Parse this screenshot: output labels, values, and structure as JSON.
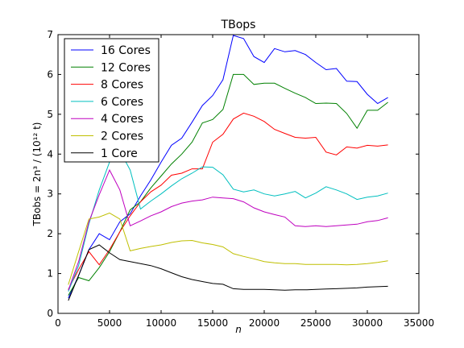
{
  "chart_data": {
    "type": "line",
    "title": "TBops",
    "xlabel": "n",
    "ylabel": "TBobs = 2n³ / (10¹² t)",
    "xlim": [
      0,
      35000
    ],
    "ylim": [
      0,
      7
    ],
    "xticks": [
      0,
      5000,
      10000,
      15000,
      20000,
      25000,
      30000,
      35000
    ],
    "xtick_labels": [
      "0",
      "5000",
      "10000",
      "15000",
      "20000",
      "25000",
      "30000",
      "35000"
    ],
    "yticks": [
      0,
      1,
      2,
      3,
      4,
      5,
      6,
      7
    ],
    "ytick_labels": [
      "0",
      "1",
      "2",
      "3",
      "4",
      "5",
      "6",
      "7"
    ],
    "grid": false,
    "legend_position": "top-left",
    "series": [
      {
        "name": "16 Cores",
        "color": "#0000ff",
        "x": [
          1000,
          2000,
          3000,
          4000,
          5000,
          6000,
          7000,
          8000,
          9000,
          10000,
          11000,
          12000,
          13000,
          14000,
          15000,
          16000,
          17000,
          18000,
          19000,
          20000,
          21000,
          22000,
          23000,
          24000,
          25000,
          26000,
          27000,
          28000,
          29000,
          30000,
          31000,
          32000
        ],
        "y": [
          0.38,
          0.95,
          1.6,
          2.0,
          1.85,
          2.3,
          2.5,
          2.95,
          3.35,
          3.8,
          4.22,
          4.4,
          4.8,
          5.22,
          5.47,
          5.87,
          6.98,
          6.9,
          6.45,
          6.3,
          6.65,
          6.57,
          6.6,
          6.5,
          6.3,
          6.12,
          6.15,
          5.83,
          5.82,
          5.5,
          5.27,
          5.42
        ]
      },
      {
        "name": "12 Cores",
        "color": "#008000",
        "x": [
          1000,
          2000,
          3000,
          4000,
          5000,
          6000,
          7000,
          8000,
          9000,
          10000,
          11000,
          12000,
          13000,
          14000,
          15000,
          16000,
          17000,
          18000,
          19000,
          20000,
          21000,
          22000,
          23000,
          24000,
          25000,
          26000,
          27000,
          28000,
          29000,
          30000,
          31000,
          32000
        ],
        "y": [
          0.45,
          0.9,
          0.82,
          1.15,
          1.55,
          2.05,
          2.6,
          2.8,
          3.15,
          3.45,
          3.75,
          4.0,
          4.3,
          4.78,
          4.87,
          5.12,
          6.0,
          6.0,
          5.75,
          5.78,
          5.78,
          5.65,
          5.53,
          5.42,
          5.27,
          5.28,
          5.27,
          5.02,
          4.65,
          5.1,
          5.1,
          5.3
        ]
      },
      {
        "name": "8 Cores",
        "color": "#ff0000",
        "x": [
          1000,
          2000,
          3000,
          4000,
          5000,
          6000,
          7000,
          8000,
          9000,
          10000,
          11000,
          12000,
          13000,
          14000,
          15000,
          16000,
          17000,
          18000,
          19000,
          20000,
          21000,
          22000,
          23000,
          24000,
          25000,
          26000,
          27000,
          28000,
          29000,
          30000,
          31000,
          32000
        ],
        "y": [
          0.6,
          1.1,
          1.55,
          1.22,
          1.6,
          2.05,
          2.45,
          2.8,
          3.05,
          3.22,
          3.47,
          3.52,
          3.63,
          3.63,
          4.3,
          4.5,
          4.88,
          5.03,
          4.95,
          4.82,
          4.62,
          4.52,
          4.42,
          4.4,
          4.42,
          4.05,
          3.98,
          4.18,
          4.15,
          4.22,
          4.2,
          4.23
        ]
      },
      {
        "name": "6 Cores",
        "color": "#00bfbf",
        "x": [
          1000,
          2000,
          3000,
          4000,
          5000,
          6000,
          7000,
          8000,
          9000,
          10000,
          11000,
          12000,
          13000,
          14000,
          15000,
          16000,
          17000,
          18000,
          19000,
          20000,
          21000,
          22000,
          23000,
          24000,
          25000,
          26000,
          27000,
          28000,
          29000,
          30000,
          31000,
          32000
        ],
        "y": [
          0.55,
          1.2,
          2.25,
          3.1,
          3.8,
          4.08,
          3.6,
          2.62,
          2.82,
          3.0,
          3.2,
          3.38,
          3.52,
          3.68,
          3.67,
          3.48,
          3.12,
          3.05,
          3.1,
          3.0,
          2.95,
          3.0,
          3.06,
          2.9,
          3.02,
          3.18,
          3.1,
          3.0,
          2.86,
          2.92,
          2.95,
          3.02
        ]
      },
      {
        "name": "4 Cores",
        "color": "#bf00bf",
        "x": [
          1000,
          2000,
          3000,
          4000,
          5000,
          6000,
          7000,
          8000,
          9000,
          10000,
          11000,
          12000,
          13000,
          14000,
          15000,
          16000,
          17000,
          18000,
          19000,
          20000,
          21000,
          22000,
          23000,
          24000,
          25000,
          26000,
          27000,
          28000,
          29000,
          30000,
          31000,
          32000
        ],
        "y": [
          0.58,
          1.3,
          2.3,
          2.98,
          3.6,
          3.1,
          2.2,
          2.32,
          2.45,
          2.55,
          2.68,
          2.77,
          2.82,
          2.85,
          2.92,
          2.9,
          2.88,
          2.8,
          2.65,
          2.55,
          2.48,
          2.42,
          2.2,
          2.18,
          2.2,
          2.18,
          2.2,
          2.22,
          2.24,
          2.3,
          2.33,
          2.4
        ]
      },
      {
        "name": "2 Cores",
        "color": "#bfbf00",
        "x": [
          1000,
          2000,
          3000,
          4000,
          5000,
          6000,
          7000,
          8000,
          9000,
          10000,
          11000,
          12000,
          13000,
          14000,
          15000,
          16000,
          17000,
          18000,
          19000,
          20000,
          21000,
          22000,
          23000,
          24000,
          25000,
          26000,
          27000,
          28000,
          29000,
          30000,
          31000,
          32000
        ],
        "y": [
          0.72,
          1.55,
          2.37,
          2.42,
          2.52,
          2.37,
          1.57,
          1.63,
          1.68,
          1.72,
          1.78,
          1.82,
          1.83,
          1.77,
          1.73,
          1.67,
          1.5,
          1.43,
          1.37,
          1.3,
          1.27,
          1.25,
          1.25,
          1.23,
          1.23,
          1.23,
          1.23,
          1.22,
          1.23,
          1.25,
          1.28,
          1.32
        ]
      },
      {
        "name": "1 Core",
        "color": "#000000",
        "x": [
          1000,
          2000,
          3000,
          4000,
          5000,
          6000,
          7000,
          8000,
          9000,
          10000,
          11000,
          12000,
          13000,
          14000,
          15000,
          16000,
          17000,
          18000,
          19000,
          20000,
          21000,
          22000,
          23000,
          24000,
          25000,
          26000,
          27000,
          28000,
          29000,
          30000,
          31000,
          32000
        ],
        "y": [
          0.32,
          0.95,
          1.6,
          1.72,
          1.52,
          1.35,
          1.3,
          1.25,
          1.2,
          1.12,
          1.02,
          0.92,
          0.85,
          0.8,
          0.75,
          0.73,
          0.62,
          0.6,
          0.6,
          0.6,
          0.59,
          0.58,
          0.59,
          0.59,
          0.6,
          0.61,
          0.62,
          0.63,
          0.64,
          0.66,
          0.67,
          0.68
        ]
      }
    ]
  }
}
